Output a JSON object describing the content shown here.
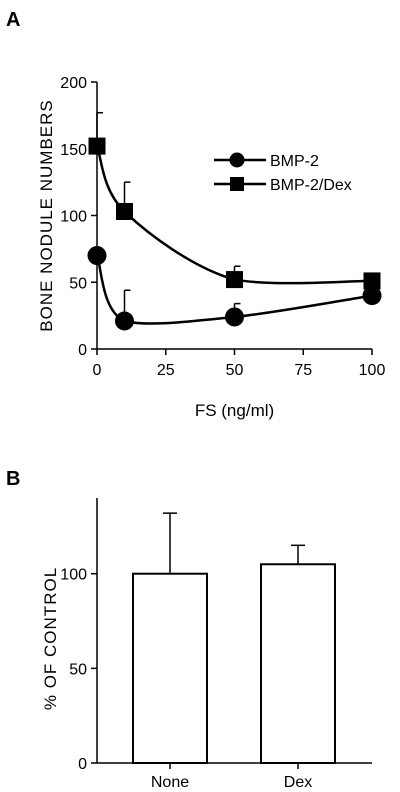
{
  "figure": {
    "panel_a_letter": "A",
    "panel_b_letter": "B"
  },
  "chart_data": [
    {
      "type": "line",
      "panel": "A",
      "xlabel": "FS (ng/ml)",
      "ylabel": "BONE NODULE NUMBERS",
      "xlim": [
        0,
        100
      ],
      "ylim": [
        0,
        200
      ],
      "xticks": [
        "0",
        "25",
        "50",
        "75",
        "100"
      ],
      "yticks": [
        "0",
        "50",
        "100",
        "150",
        "200"
      ],
      "legend_position": "top-right",
      "x": [
        0,
        10,
        50,
        100
      ],
      "series": [
        {
          "name": "BMP-2",
          "marker": "circle",
          "values": [
            70,
            21,
            24,
            40
          ],
          "error": [
            0,
            23,
            10,
            0
          ]
        },
        {
          "name": "BMP-2/Dex",
          "marker": "square",
          "values": [
            152,
            103,
            52,
            51
          ],
          "error": [
            25,
            22,
            10,
            5
          ]
        }
      ]
    },
    {
      "type": "bar",
      "panel": "B",
      "xlabel": "",
      "ylabel": "% OF CONTROL",
      "ylim": [
        0,
        140
      ],
      "yticks": [
        "0",
        "50",
        "100"
      ],
      "categories": [
        "None",
        "Dex"
      ],
      "values": [
        100,
        105
      ],
      "error": [
        32,
        10
      ]
    }
  ]
}
